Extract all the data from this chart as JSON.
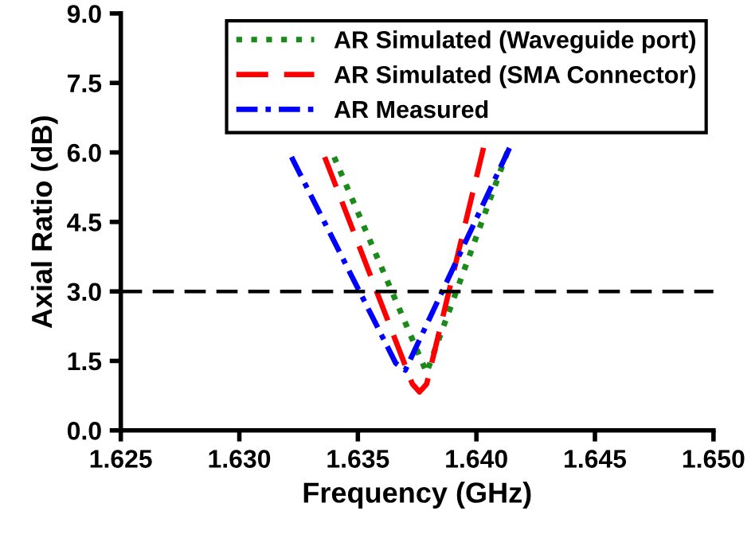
{
  "chart_data": {
    "type": "line",
    "xlabel": "Frequency (GHz)",
    "ylabel": "Axial Ratio (dB)",
    "series": [
      {
        "name": "AR Simulated (Waveguide port)",
        "color": "#1a8a1a",
        "line_style": "dotted",
        "x": [
          1.634,
          1.6379,
          1.6413
        ],
        "values": [
          5.9,
          1.25,
          6.0
        ]
      },
      {
        "name": "AR Simulated (SMA Connector)",
        "color": "#ff0000",
        "line_style": "dashed",
        "x": [
          1.6336,
          1.6373,
          1.6376,
          1.6379,
          1.6403
        ],
        "values": [
          5.9,
          1.0,
          0.83,
          1.0,
          6.1
        ]
      },
      {
        "name": "AR Measured",
        "color": "#0000ff",
        "line_style": "dashdot",
        "x": [
          1.6322,
          1.6366,
          1.637,
          1.6414
        ],
        "values": [
          5.9,
          1.45,
          1.3,
          6.1
        ]
      }
    ],
    "xlim": [
      1.625,
      1.65
    ],
    "xticks": [
      {
        "value": 1.625,
        "label": "1.625"
      },
      {
        "value": 1.63,
        "label": "1.630"
      },
      {
        "value": 1.635,
        "label": "1.635"
      },
      {
        "value": 1.64,
        "label": "1.640"
      },
      {
        "value": 1.645,
        "label": "1.645"
      },
      {
        "value": 1.65,
        "label": "1.650"
      }
    ],
    "ylim": [
      0,
      9
    ],
    "yticks": [
      {
        "value": 0,
        "label": "0.0"
      },
      {
        "value": 1.5,
        "label": "1.5"
      },
      {
        "value": 3,
        "label": "3.0"
      },
      {
        "value": 4.5,
        "label": "4.5"
      },
      {
        "value": 6,
        "label": "6.0"
      },
      {
        "value": 7.5,
        "label": "7.5"
      },
      {
        "value": 9,
        "label": "9.0"
      }
    ],
    "ref_lines": [
      {
        "axis": "y",
        "value": 3,
        "color": "#000000",
        "line_style": "dashed"
      }
    ],
    "grid": false,
    "legend": "top"
  }
}
